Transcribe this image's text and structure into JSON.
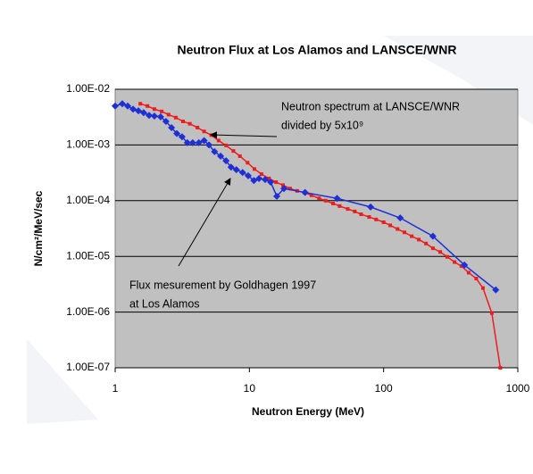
{
  "chart_data": {
    "type": "line",
    "title": "Neutron Flux at Los Alamos and LANSCE/WNR",
    "x_label": "Neutron Energy (MeV)",
    "y_label": "N/cm²/MeV/sec",
    "log_x": true,
    "log_y": true,
    "grid": true,
    "xlim": [
      1,
      1000
    ],
    "ylim": [
      1e-07,
      0.01
    ],
    "xticks": [
      1,
      10,
      100,
      1000
    ],
    "yticks": [
      {
        "value": 0.01,
        "label": "1.00E-02"
      },
      {
        "value": 0.001,
        "label": "1.00E-03"
      },
      {
        "value": 0.0001,
        "label": "1.00E-04"
      },
      {
        "value": 1e-05,
        "label": "1.00E-05"
      },
      {
        "value": 1e-06,
        "label": "1.00E-06"
      },
      {
        "value": 1e-07,
        "label": "1.00E-07"
      }
    ],
    "series": [
      {
        "color": "#ee1c1c",
        "marker": "square",
        "x": [
          1.54,
          1.74,
          1.96,
          2.22,
          2.5,
          2.83,
          3.2,
          3.6,
          4.1,
          4.6,
          5.2,
          5.9,
          6.7,
          7.6,
          8.5,
          9.7,
          10.9,
          12.3,
          14.0,
          15.8,
          17.8,
          20.1,
          22.7,
          25.7,
          29,
          33,
          37,
          42,
          47,
          54,
          61,
          68,
          78,
          88,
          100,
          112,
          127,
          143,
          162,
          183,
          207,
          233,
          264,
          298,
          338,
          380,
          430,
          490,
          550,
          640,
          740
        ],
        "values": [
          0.0055,
          0.005,
          0.0044,
          0.004,
          0.0035,
          0.0031,
          0.00265,
          0.0024,
          0.00205,
          0.00175,
          0.0015,
          0.0012,
          0.00098,
          0.00078,
          0.00063,
          0.00048,
          0.00037,
          0.0003,
          0.00025,
          0.000215,
          0.00019,
          0.000165,
          0.00015,
          0.00014,
          0.000125,
          0.00011,
          0.0001,
          8.9e-05,
          8e-05,
          7.1e-05,
          6.4e-05,
          5.7e-05,
          5.1e-05,
          4.6e-05,
          4.1e-05,
          3.6e-05,
          3.1e-05,
          2.7e-05,
          2.3e-05,
          2e-05,
          1.7e-05,
          1.4e-05,
          1.2e-05,
          9.8e-06,
          7.9e-06,
          6.7e-06,
          5.1e-06,
          4e-06,
          2.7e-06,
          9.6e-07,
          1e-07
        ]
      },
      {
        "color": "#1f2fd6",
        "marker": "diamond",
        "x": [
          1.0,
          1.13,
          1.24,
          1.36,
          1.49,
          1.63,
          1.79,
          1.96,
          2.18,
          2.39,
          2.63,
          2.88,
          3.15,
          3.45,
          3.78,
          4.2,
          4.6,
          5.0,
          5.5,
          6.1,
          6.7,
          7.3,
          8.0,
          8.9,
          9.8,
          10.8,
          11.8,
          13.1,
          14.4,
          16.0,
          18.1,
          26,
          45,
          80,
          133,
          233,
          400,
          685
        ],
        "values": [
          0.005,
          0.0055,
          0.005,
          0.0044,
          0.0041,
          0.0038,
          0.0034,
          0.0033,
          0.0032,
          0.00265,
          0.00205,
          0.0016,
          0.0014,
          0.0011,
          0.0011,
          0.0011,
          0.0012,
          0.001,
          0.00076,
          0.00063,
          0.00052,
          0.0004,
          0.00036,
          0.00032,
          0.00028,
          0.00023,
          0.00025,
          0.00024,
          0.000215,
          0.00012,
          0.000165,
          0.00014,
          0.00011,
          7.7e-05,
          4.9e-05,
          2.3e-05,
          7e-06,
          2.5e-06
        ]
      }
    ],
    "annotations": [
      {
        "lines": [
          "Neutron spectrum at LANSCE/WNR",
          "divided by 5x10⁹"
        ]
      },
      {
        "lines": [
          "Flux mesurement by Goldhagen 1997",
          "at Los Alamos"
        ]
      }
    ]
  }
}
